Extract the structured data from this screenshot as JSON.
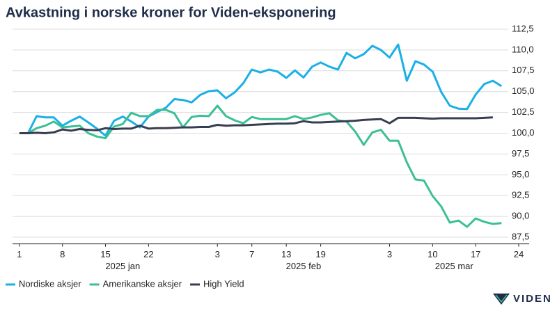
{
  "chart_data": {
    "type": "line",
    "title": "Avkastning i norske kroner for Viden-eksponering",
    "brand": "VIDEN",
    "x": [
      0,
      1,
      2,
      3,
      4,
      5,
      6,
      7,
      8,
      9,
      10,
      11,
      12,
      13,
      14,
      15,
      16,
      17,
      18,
      19,
      20,
      21,
      22,
      23,
      24,
      25,
      26,
      27,
      28,
      29,
      30,
      31,
      32,
      33,
      34,
      35,
      36,
      37,
      38,
      39,
      40,
      41,
      42,
      43,
      44,
      45,
      46,
      47,
      48,
      49,
      50,
      51,
      52,
      53,
      54,
      55,
      56
    ],
    "series": [
      {
        "name": "Nordiske aksjer",
        "color": "#1ab0e6",
        "values": [
          100,
          100,
          102.05,
          101.9,
          101.9,
          100.9,
          101.5,
          102,
          101.3,
          100.55,
          99.7,
          101.5,
          102,
          101.4,
          100.7,
          102,
          102.55,
          103.05,
          104.1,
          104,
          103.7,
          104.6,
          105.05,
          105.15,
          104.2,
          104.9,
          106,
          107.65,
          107.3,
          107.65,
          107.4,
          106.65,
          107.55,
          106.7,
          108,
          108.5,
          108,
          107.65,
          109.65,
          109,
          109.5,
          110.5,
          110,
          109.1,
          110.65,
          106.3,
          108.65,
          108.25,
          107.4,
          104.95,
          103.3,
          102.95,
          102.9,
          104.65,
          105.9,
          106.3,
          105.65
        ]
      },
      {
        "name": "Amerikanske aksjer",
        "color": "#3cbf94",
        "values": [
          100,
          100,
          100.6,
          100.9,
          101.4,
          100.7,
          100.8,
          100.9,
          100,
          99.6,
          99.4,
          100.8,
          101.1,
          102.45,
          102.05,
          102.05,
          102.8,
          102.8,
          102.4,
          100.7,
          101.95,
          102.1,
          102.05,
          103.3,
          102.05,
          101.55,
          101.2,
          101.95,
          101.7,
          101.7,
          101.7,
          101.7,
          102.05,
          101.7,
          101.9,
          102.2,
          102.4,
          101.55,
          101.4,
          100.2,
          98.6,
          100.1,
          100.4,
          99.1,
          99.1,
          96.5,
          94.45,
          94.3,
          92.45,
          91.2,
          89.25,
          89.5,
          88.75,
          89.75,
          89.35,
          89.1,
          89.2
        ]
      },
      {
        "name": "High Yield",
        "color": "#383d52",
        "values": [
          100,
          100,
          100.05,
          100,
          100.1,
          100.45,
          100.3,
          100.5,
          100.4,
          100.35,
          100.6,
          100.5,
          100.55,
          100.55,
          100.9,
          100.55,
          100.6,
          100.6,
          100.65,
          100.7,
          100.7,
          100.75,
          100.75,
          101,
          100.9,
          100.95,
          100.95,
          101,
          101.05,
          101.1,
          101.15,
          101.15,
          101.2,
          101.45,
          101.3,
          101.3,
          101.35,
          101.4,
          101.45,
          101.5,
          101.6,
          101.65,
          101.7,
          101.2,
          101.85,
          101.85,
          101.85,
          101.8,
          101.75,
          101.8,
          101.8,
          101.8,
          101.8,
          101.8,
          101.85,
          101.9,
          null
        ]
      }
    ],
    "xlim": [
      -0.8,
      58
    ],
    "xticks": [
      {
        "value": 0,
        "label": "1"
      },
      {
        "value": 5,
        "label": "8"
      },
      {
        "value": 10,
        "label": "15"
      },
      {
        "value": 15,
        "label": "22"
      },
      {
        "value": 23,
        "label": "3"
      },
      {
        "value": 27,
        "label": "7"
      },
      {
        "value": 31,
        "label": "13"
      },
      {
        "value": 35,
        "label": "19"
      },
      {
        "value": 43,
        "label": "3"
      },
      {
        "value": 48,
        "label": "10"
      },
      {
        "value": 53,
        "label": "17"
      },
      {
        "value": 58,
        "label": "24"
      }
    ],
    "month_labels": [
      {
        "value": 12,
        "label": "2025 jan"
      },
      {
        "value": 33,
        "label": "2025 feb"
      },
      {
        "value": 50.5,
        "label": "2025 mar"
      }
    ],
    "ylim": [
      86.7,
      113
    ],
    "yticks": [
      {
        "value": 87.5,
        "label": "87,5"
      },
      {
        "value": 90,
        "label": "90,0"
      },
      {
        "value": 92.5,
        "label": "92,5"
      },
      {
        "value": 95,
        "label": "95,0"
      },
      {
        "value": 97.5,
        "label": "97,5"
      },
      {
        "value": 100,
        "label": "100,0"
      },
      {
        "value": 102.5,
        "label": "102,5"
      },
      {
        "value": 105,
        "label": "105,0"
      },
      {
        "value": 107.5,
        "label": "107,5"
      },
      {
        "value": 110,
        "label": "110,0"
      },
      {
        "value": 112.5,
        "label": "112,5"
      }
    ],
    "grid": true,
    "legend": "bottom"
  }
}
